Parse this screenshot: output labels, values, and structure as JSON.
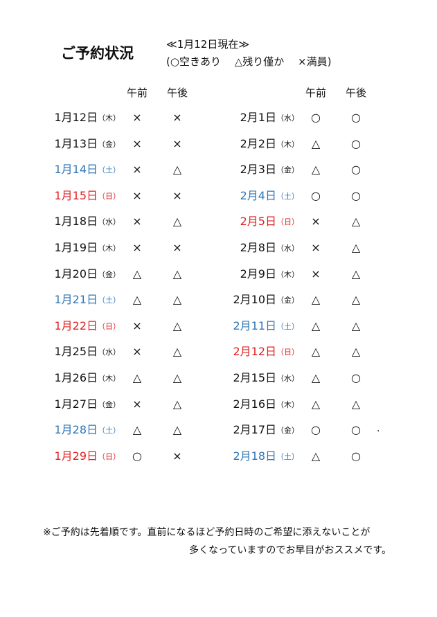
{
  "header": {
    "title": "ご予約状況",
    "as_of": "≪1月12日現在≫",
    "legend": "(○空きあり　 △残り僅か　 ×満員)"
  },
  "columns": [
    {
      "headers": [
        "午前",
        "午後"
      ],
      "rows": [
        {
          "date": "1月12日",
          "day": "（木）",
          "am": "×",
          "pm": "×",
          "color": "#111111"
        },
        {
          "date": "1月13日",
          "day": "（金）",
          "am": "×",
          "pm": "×",
          "color": "#111111"
        },
        {
          "date": "1月14日",
          "day": "（土）",
          "am": "×",
          "pm": "△",
          "color": "#2e75b6"
        },
        {
          "date": "1月15日",
          "day": "（日）",
          "am": "×",
          "pm": "×",
          "color": "#e02020"
        },
        {
          "date": "1月18日",
          "day": "（水）",
          "am": "×",
          "pm": "△",
          "color": "#111111"
        },
        {
          "date": "1月19日",
          "day": "（木）",
          "am": "×",
          "pm": "×",
          "color": "#111111"
        },
        {
          "date": "1月20日",
          "day": "（金）",
          "am": "△",
          "pm": "△",
          "color": "#111111"
        },
        {
          "date": "1月21日",
          "day": "（土）",
          "am": "△",
          "pm": "△",
          "color": "#2e75b6"
        },
        {
          "date": "1月22日",
          "day": "（日）",
          "am": "×",
          "pm": "△",
          "color": "#e02020"
        },
        {
          "date": "1月25日",
          "day": "（水）",
          "am": "×",
          "pm": "△",
          "color": "#111111"
        },
        {
          "date": "1月26日",
          "day": "（木）",
          "am": "△",
          "pm": "△",
          "color": "#111111"
        },
        {
          "date": "1月27日",
          "day": "（金）",
          "am": "×",
          "pm": "△",
          "color": "#111111"
        },
        {
          "date": "1月28日",
          "day": "（土）",
          "am": "△",
          "pm": "△",
          "color": "#2e75b6"
        },
        {
          "date": "1月29日",
          "day": "（日）",
          "am": "○",
          "pm": "×",
          "color": "#e02020"
        }
      ]
    },
    {
      "headers": [
        "午前",
        "午後"
      ],
      "rows": [
        {
          "date": "2月1日",
          "day": "（水）",
          "am": "○",
          "pm": "○",
          "color": "#111111"
        },
        {
          "date": "2月2日",
          "day": "（木）",
          "am": "△",
          "pm": "○",
          "color": "#111111"
        },
        {
          "date": "2月3日",
          "day": "（金）",
          "am": "△",
          "pm": "○",
          "color": "#111111"
        },
        {
          "date": "2月4日",
          "day": "（土）",
          "am": "○",
          "pm": "○",
          "color": "#2e75b6"
        },
        {
          "date": "2月5日",
          "day": "（日）",
          "am": "×",
          "pm": "△",
          "color": "#e02020"
        },
        {
          "date": "2月8日",
          "day": "（水）",
          "am": "×",
          "pm": "△",
          "color": "#111111"
        },
        {
          "date": "2月9日",
          "day": "（木）",
          "am": "×",
          "pm": "△",
          "color": "#111111"
        },
        {
          "date": "2月10日",
          "day": "（金）",
          "am": "△",
          "pm": "△",
          "color": "#111111"
        },
        {
          "date": "2月11日",
          "day": "（土）",
          "am": "△",
          "pm": "△",
          "color": "#2e75b6"
        },
        {
          "date": "2月12日",
          "day": "（日）",
          "am": "△",
          "pm": "△",
          "color": "#e02020"
        },
        {
          "date": "2月15日",
          "day": "（水）",
          "am": "△",
          "pm": "○",
          "color": "#111111"
        },
        {
          "date": "2月16日",
          "day": "（木）",
          "am": "△",
          "pm": "△",
          "color": "#111111"
        },
        {
          "date": "2月17日",
          "day": "（金）",
          "am": "○",
          "pm": "○",
          "color": "#111111"
        },
        {
          "date": "2月18日",
          "day": "（土）",
          "am": "△",
          "pm": "○",
          "color": "#2e75b6"
        }
      ]
    }
  ],
  "stray_mark": ".",
  "footer": {
    "line1": "※ご予約は先着順です。直前になるほど予約日時のご希望に添えないことが",
    "line2": "多くなっていますのでお早目がおススメです。"
  }
}
